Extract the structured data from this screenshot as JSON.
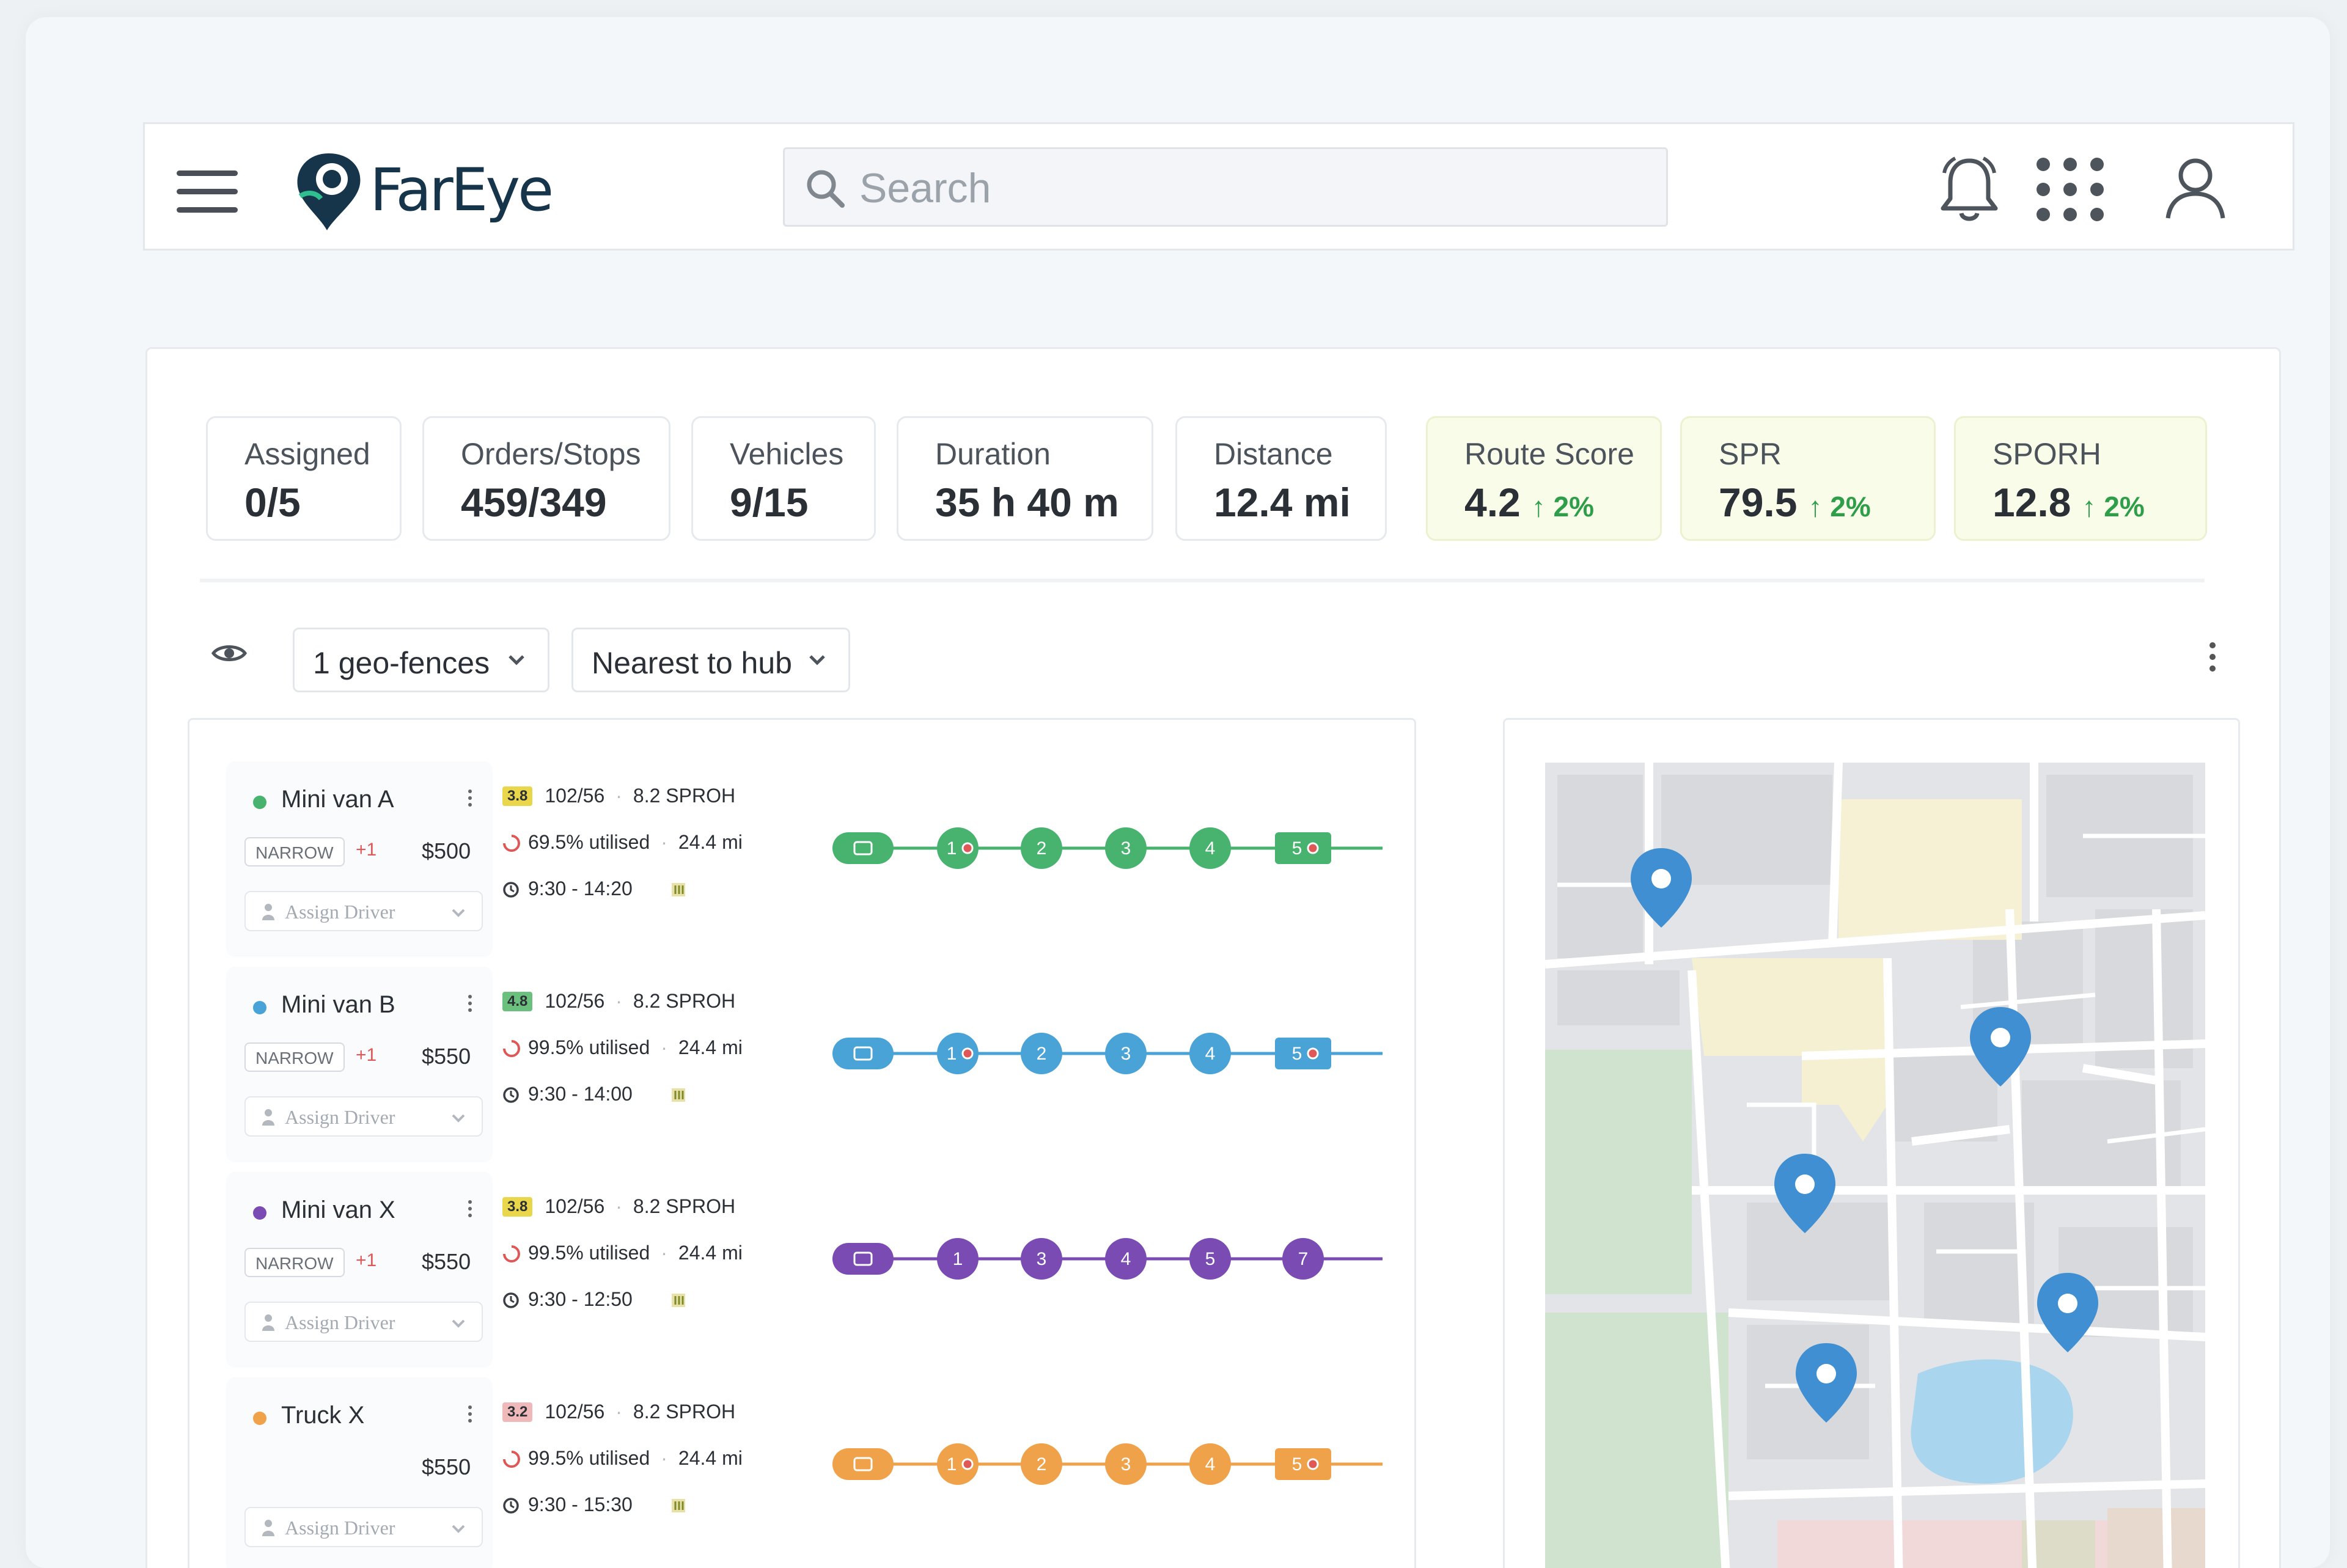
{
  "app": {
    "logo_text": "FarEye",
    "colors": {
      "brand": "#16354a",
      "accent_green": "#2e9e4a"
    }
  },
  "header": {
    "search_placeholder": "Search",
    "icons": [
      "menu-icon",
      "bell-icon",
      "apps-grid-icon",
      "user-icon"
    ]
  },
  "stats": [
    {
      "label": "Assigned",
      "value": "0/5"
    },
    {
      "label": "Orders/Stops",
      "value": "459/349"
    },
    {
      "label": "Vehicles",
      "value": "9/15"
    },
    {
      "label": "Duration",
      "value": "35 h 40 m"
    },
    {
      "label": "Distance",
      "value": "12.4 mi"
    },
    {
      "label": "Route Score",
      "value": "4.2",
      "delta": "2%"
    },
    {
      "label": "SPR",
      "value": "79.5",
      "delta": "2%"
    },
    {
      "label": "SPORH",
      "value": "12.8",
      "delta": "2%"
    }
  ],
  "toolbar": {
    "geofence_label": "1 geo-fences",
    "sort_label": "Nearest to hub"
  },
  "vehicles": [
    {
      "name": "Mini van A",
      "color": "#47b36f",
      "type": "NARROW",
      "extra": "+1",
      "price": "$500",
      "assign_label": "Assign Driver",
      "score": "3.8",
      "score_color": "#e9d64a",
      "orders": "102/56",
      "sproh": "8.2 SPROH",
      "utilised": "69.5% utilised",
      "distance": "24.4 mi",
      "time": "9:30 - 14:20",
      "stops": [
        "",
        "1",
        "2",
        "3",
        "4",
        "5"
      ]
    },
    {
      "name": "Mini van B",
      "color": "#4aa3d6",
      "type": "NARROW",
      "extra": "+1",
      "price": "$550",
      "assign_label": "Assign Driver",
      "score": "4.8",
      "score_color": "#6bc07d",
      "orders": "102/56",
      "sproh": "8.2 SPROH",
      "utilised": "99.5% utilised",
      "distance": "24.4 mi",
      "time": "9:30 - 14:00",
      "stops": [
        "",
        "1",
        "2",
        "3",
        "4",
        "5"
      ]
    },
    {
      "name": "Mini van X",
      "color": "#7a4bb3",
      "type": "NARROW",
      "extra": "+1",
      "price": "$550",
      "assign_label": "Assign Driver",
      "score": "3.8",
      "score_color": "#e9d64a",
      "orders": "102/56",
      "sproh": "8.2 SPROH",
      "utilised": "99.5% utilised",
      "distance": "24.4 mi",
      "time": "9:30 - 12:50",
      "stops": [
        "",
        "1",
        "3",
        "4",
        "5",
        "7"
      ]
    },
    {
      "name": "Truck X",
      "color": "#f0a24a",
      "type": "",
      "extra": "",
      "price": "$550",
      "assign_label": "Assign Driver",
      "score": "3.2",
      "score_color": "#f0b9b9",
      "orders": "102/56",
      "sproh": "8.2 SPROH",
      "utilised": "99.5% utilised",
      "distance": "24.4 mi",
      "time": "9:30 - 15:30",
      "stops": [
        "",
        "1",
        "2",
        "3",
        "4",
        "5"
      ]
    }
  ]
}
